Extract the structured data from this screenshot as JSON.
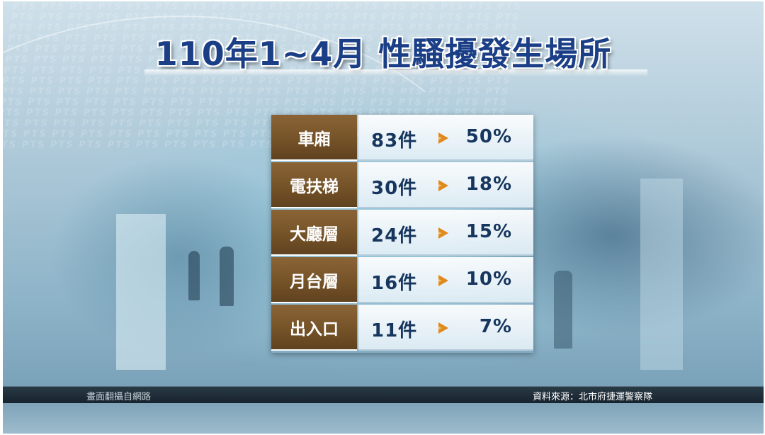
{
  "title": "110年1~4月  性騷擾發生場所",
  "watermark": "PTS",
  "table": {
    "rows": [
      {
        "location": "車廂",
        "count": "83件",
        "percent": "50%"
      },
      {
        "location": "電扶梯",
        "count": "30件",
        "percent": "18%"
      },
      {
        "location": "大廳層",
        "count": "24件",
        "percent": "15%"
      },
      {
        "location": "月台層",
        "count": "16件",
        "percent": "10%"
      },
      {
        "location": "出入口",
        "count": "11件",
        "percent": "7%"
      }
    ]
  },
  "footer": {
    "left": "畫面翻攝自網路",
    "right": "資料來源：北市府捷運警察隊"
  },
  "colors": {
    "title": "#1b3f86",
    "label_bg": "#735127",
    "value_text": "#16365e",
    "arrow": "#e08a1e"
  }
}
